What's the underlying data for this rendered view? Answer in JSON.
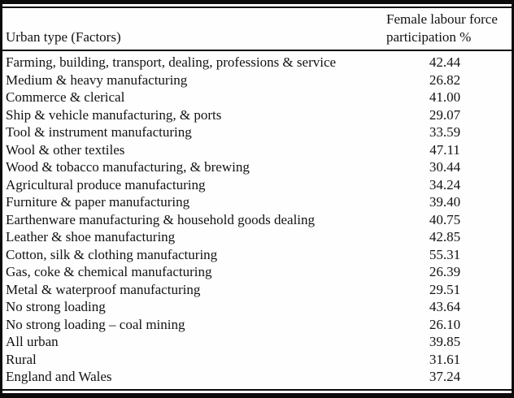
{
  "chart_data": {
    "type": "table",
    "columns": {
      "factor_header": "Urban type (Factors)",
      "value_header": "Female labour force participation %",
      "value_header_line1": "Female labour force",
      "value_header_line2": "participation %"
    },
    "rows": [
      {
        "label": "Farming, building, transport, dealing, professions & service",
        "value": "42.44"
      },
      {
        "label": "Medium & heavy manufacturing",
        "value": "26.82"
      },
      {
        "label": "Commerce & clerical",
        "value": "41.00"
      },
      {
        "label": "Ship & vehicle manufacturing, & ports",
        "value": "29.07"
      },
      {
        "label": "Tool & instrument manufacturing",
        "value": "33.59"
      },
      {
        "label": "Wool & other textiles",
        "value": "47.11"
      },
      {
        "label": "Wood & tobacco manufacturing, & brewing",
        "value": "30.44"
      },
      {
        "label": "Agricultural produce manufacturing",
        "value": "34.24"
      },
      {
        "label": "Furniture & paper manufacturing",
        "value": "39.40"
      },
      {
        "label": "Earthenware manufacturing & household goods dealing",
        "value": "40.75"
      },
      {
        "label": "Leather & shoe manufacturing",
        "value": "42.85"
      },
      {
        "label": "Cotton, silk & clothing manufacturing",
        "value": "55.31"
      },
      {
        "label": "Gas, coke & chemical manufacturing",
        "value": "26.39"
      },
      {
        "label": "Metal & waterproof manufacturing",
        "value": "29.51"
      },
      {
        "label": "No strong loading",
        "value": "43.64"
      },
      {
        "label": "No strong loading – coal mining",
        "value": "26.10"
      },
      {
        "label": "All urban",
        "value": "39.85"
      },
      {
        "label": "Rural",
        "value": "31.61"
      },
      {
        "label": "England and Wales",
        "value": "37.24"
      }
    ],
    "layout": {
      "border_style": "double-rule top and bottom, single rule under header",
      "colors": {
        "text": "#121212",
        "background": "#fefefe",
        "rule": "#0b0b0b"
      }
    }
  }
}
